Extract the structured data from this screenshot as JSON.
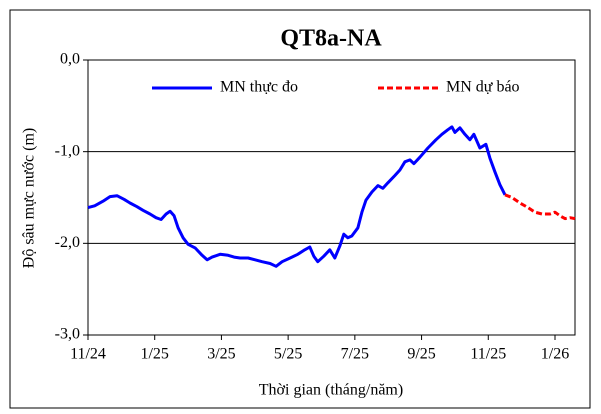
{
  "chart_data": {
    "type": "line",
    "title": "QT8a-NA",
    "y_label": "Độ sâu mực nước (m)",
    "x_label": "Thời gian (tháng/năm)",
    "xlim": [
      0,
      14.6
    ],
    "ylim": [
      -3,
      0
    ],
    "xticks": [
      {
        "value": 0,
        "label": "11/24"
      },
      {
        "value": 2,
        "label": "1/25"
      },
      {
        "value": 4,
        "label": "3/25"
      },
      {
        "value": 6,
        "label": "5/25"
      },
      {
        "value": 8,
        "label": "7/25"
      },
      {
        "value": 10,
        "label": "9/25"
      },
      {
        "value": 12,
        "label": "11/25"
      },
      {
        "value": 14,
        "label": "1/26"
      }
    ],
    "yticks": [
      {
        "value": -3,
        "label": "-3,0"
      },
      {
        "value": -2,
        "label": "-2,0"
      },
      {
        "value": -1,
        "label": "-1,0"
      },
      {
        "value": 0,
        "label": "0,0"
      }
    ],
    "grid": true,
    "legend": "top",
    "series": [
      {
        "name": "MN thực đo",
        "color": "#0000ff",
        "dashed": false,
        "x": [
          0,
          0.2,
          0.45,
          0.66,
          0.87,
          1.08,
          1.26,
          1.47,
          1.65,
          1.86,
          2.04,
          2.19,
          2.34,
          2.46,
          2.58,
          2.7,
          2.85,
          3.0,
          3.21,
          3.42,
          3.57,
          3.72,
          3.96,
          4.2,
          4.38,
          4.56,
          4.8,
          5.01,
          5.22,
          5.46,
          5.64,
          5.82,
          6.06,
          6.29,
          6.5,
          6.65,
          6.77,
          6.89,
          7.07,
          7.25,
          7.4,
          7.55,
          7.67,
          7.79,
          7.91,
          8.09,
          8.21,
          8.33,
          8.51,
          8.69,
          8.84,
          8.99,
          9.2,
          9.35,
          9.5,
          9.65,
          9.77,
          9.95,
          10.19,
          10.43,
          10.61,
          10.79,
          10.91,
          11.0,
          11.15,
          11.3,
          11.45,
          11.57,
          11.75,
          11.93,
          12.05,
          12.2,
          12.35,
          12.5
        ],
        "values": [
          -1.61,
          -1.59,
          -1.54,
          -1.49,
          -1.48,
          -1.52,
          -1.56,
          -1.6,
          -1.64,
          -1.68,
          -1.72,
          -1.74,
          -1.68,
          -1.65,
          -1.7,
          -1.83,
          -1.94,
          -2.01,
          -2.05,
          -2.13,
          -2.18,
          -2.15,
          -2.12,
          -2.13,
          -2.15,
          -2.16,
          -2.16,
          -2.18,
          -2.2,
          -2.22,
          -2.25,
          -2.2,
          -2.16,
          -2.12,
          -2.07,
          -2.04,
          -2.14,
          -2.2,
          -2.14,
          -2.07,
          -2.16,
          -2.03,
          -1.9,
          -1.94,
          -1.92,
          -1.83,
          -1.66,
          -1.53,
          -1.44,
          -1.37,
          -1.4,
          -1.34,
          -1.26,
          -1.2,
          -1.11,
          -1.09,
          -1.13,
          -1.06,
          -0.96,
          -0.87,
          -0.81,
          -0.76,
          -0.73,
          -0.79,
          -0.74,
          -0.81,
          -0.87,
          -0.81,
          -0.96,
          -0.92,
          -1.07,
          -1.22,
          -1.36,
          -1.47
        ]
      },
      {
        "name": "MN dự báo",
        "color": "#ff0000",
        "dashed": true,
        "x": [
          12.5,
          12.71,
          12.95,
          13.19,
          13.4,
          13.61,
          13.85,
          14.0,
          14.15,
          14.3,
          14.45,
          14.6
        ],
        "values": [
          -1.47,
          -1.5,
          -1.56,
          -1.61,
          -1.66,
          -1.68,
          -1.68,
          -1.66,
          -1.7,
          -1.73,
          -1.72,
          -1.73
        ]
      }
    ]
  }
}
